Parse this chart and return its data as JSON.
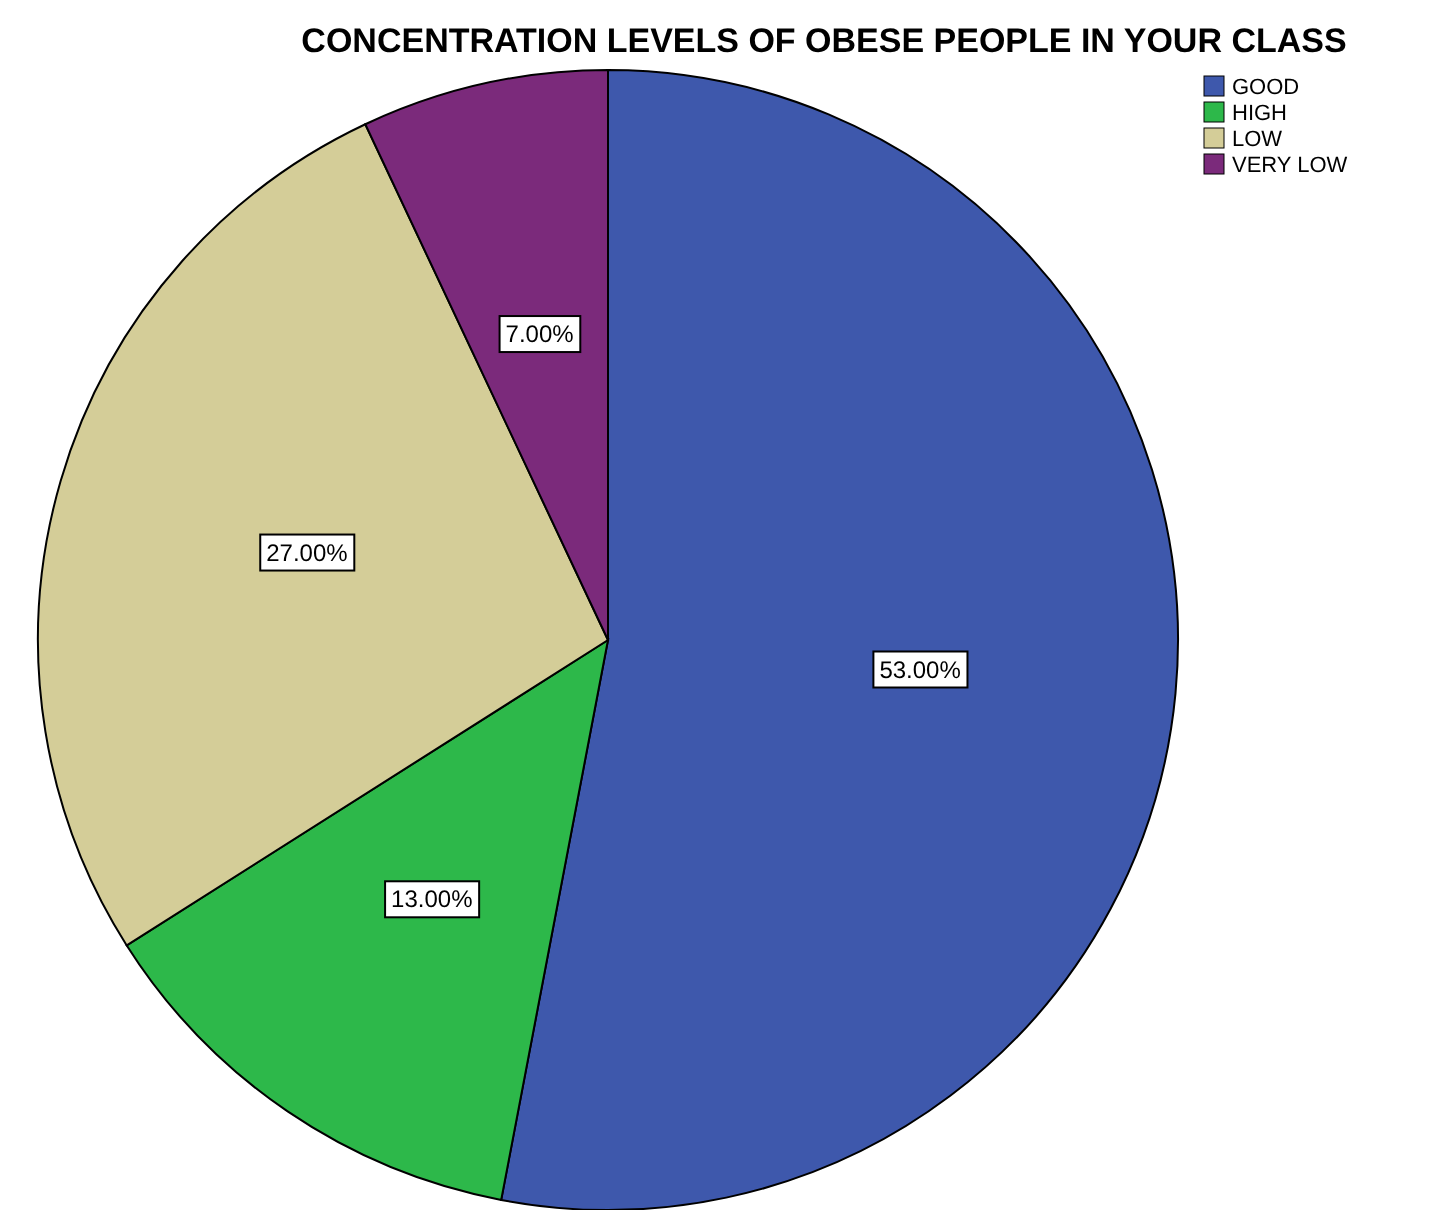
{
  "chart_data": {
    "type": "pie",
    "title": "CONCENTRATION LEVELS OF OBESE PEOPLE IN YOUR CLASS",
    "categories": [
      "GOOD",
      "HIGH",
      "LOW",
      "VERY LOW"
    ],
    "values": [
      53,
      13,
      27,
      7
    ],
    "colors": [
      "#3e58ac",
      "#2db84a",
      "#d4cd98",
      "#7b2a7b"
    ],
    "value_labels": [
      "53.00%",
      "13.00%",
      "27.00%",
      "7.00%"
    ],
    "legend": "top right"
  }
}
